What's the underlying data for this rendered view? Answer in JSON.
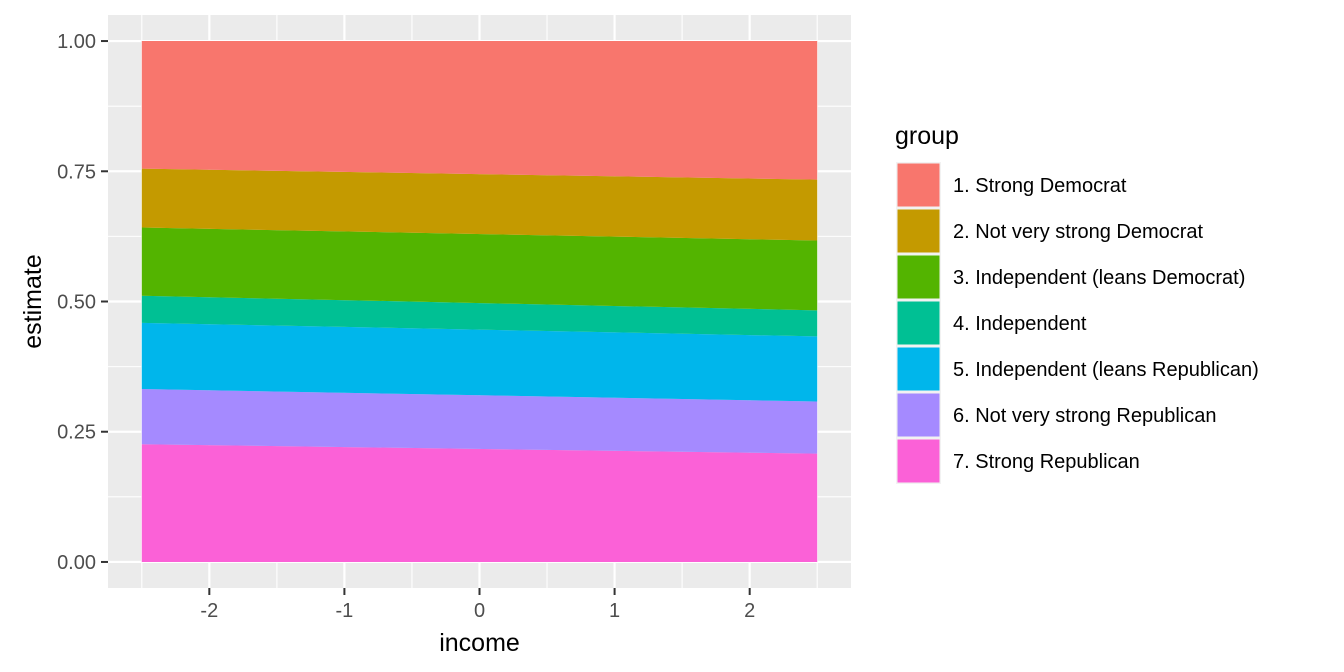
{
  "chart_data": {
    "type": "area",
    "stacked": true,
    "x": [
      -2.5,
      2.5
    ],
    "x_ticks": [
      -2,
      -1,
      0,
      1,
      2
    ],
    "x_tick_labels": [
      "-2",
      "-1",
      "0",
      "1",
      "2"
    ],
    "y_ticks": [
      0,
      0.25,
      0.5,
      0.75,
      1.0
    ],
    "y_tick_labels": [
      "0.00",
      "0.25",
      "0.50",
      "0.75",
      "1.00"
    ],
    "xlim": [
      -2.75,
      2.75
    ],
    "ylim": [
      -0.05,
      1.05
    ],
    "xlabel": "income",
    "ylabel": "estimate",
    "legend_title": "group",
    "legend_position": "right",
    "grid": true,
    "panel_background": "#EBEBEB",
    "series": [
      {
        "name": "1. Strong Democrat",
        "color": "#F8766D",
        "values": [
          0.245,
          0.266
        ]
      },
      {
        "name": "2. Not very strong Democrat",
        "color": "#C49A00",
        "values": [
          0.113,
          0.117
        ]
      },
      {
        "name": "3. Independent (leans Democrat)",
        "color": "#53B400",
        "values": [
          0.131,
          0.134
        ]
      },
      {
        "name": "4. Independent",
        "color": "#00C094",
        "values": [
          0.052,
          0.05
        ]
      },
      {
        "name": "5. Independent (leans Republican)",
        "color": "#00B6EB",
        "values": [
          0.127,
          0.125
        ]
      },
      {
        "name": "6. Not very strong Republican",
        "color": "#A58AFF",
        "values": [
          0.106,
          0.1
        ]
      },
      {
        "name": "7. Strong Republican",
        "color": "#FB61D7",
        "values": [
          0.226,
          0.208
        ]
      }
    ]
  }
}
